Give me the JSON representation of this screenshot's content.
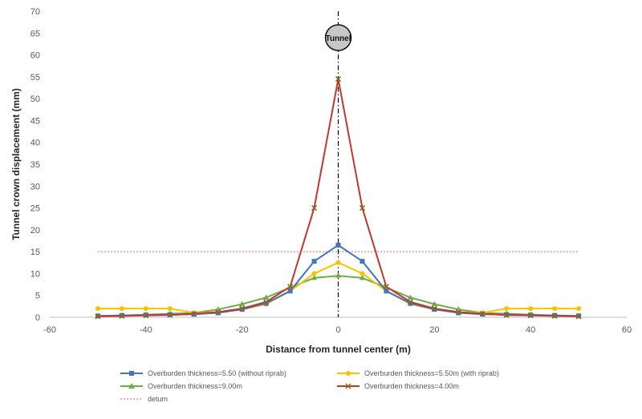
{
  "chart_data": {
    "type": "line",
    "title": "",
    "xlabel": "Distance from tunnel center (m)",
    "ylabel": "Tunnel crown displacement (mm)",
    "xlim": [
      -60,
      60
    ],
    "ylim": [
      0,
      70
    ],
    "xticks": [
      -60,
      -40,
      -20,
      0,
      20,
      40,
      60
    ],
    "yticks": [
      0,
      5,
      10,
      15,
      20,
      25,
      30,
      35,
      40,
      45,
      50,
      55,
      60,
      65,
      70
    ],
    "grid": false,
    "legend_position": "bottom",
    "annotation": "Tunnel",
    "series": [
      {
        "name": "Overburden thickness=5.50 (without riprab)",
        "color": "#4472c4",
        "marker": "square",
        "points": [
          [
            -50,
            0.3
          ],
          [
            -45,
            0.4
          ],
          [
            -40,
            0.5
          ],
          [
            -35,
            0.6
          ],
          [
            -30,
            0.7
          ],
          [
            -25,
            1.0
          ],
          [
            -20,
            1.8
          ],
          [
            -15,
            3.2
          ],
          [
            -10,
            6.0
          ],
          [
            -5,
            12.8
          ],
          [
            0,
            16.5
          ],
          [
            5,
            12.8
          ],
          [
            10,
            6.0
          ],
          [
            15,
            3.2
          ],
          [
            20,
            1.8
          ],
          [
            25,
            1.0
          ],
          [
            30,
            0.7
          ],
          [
            35,
            0.6
          ],
          [
            40,
            0.5
          ],
          [
            45,
            0.4
          ],
          [
            50,
            0.3
          ]
        ]
      },
      {
        "name": "Overburden thickness=5.50m (with riprab)",
        "color": "#ffc000",
        "marker": "circle",
        "points": [
          [
            -50,
            2.0
          ],
          [
            -45,
            2.0
          ],
          [
            -40,
            2.0
          ],
          [
            -35,
            2.0
          ],
          [
            -30,
            1.0
          ],
          [
            -25,
            1.2
          ],
          [
            -20,
            1.8
          ],
          [
            -15,
            3.0
          ],
          [
            -10,
            6.0
          ],
          [
            -5,
            10.0
          ],
          [
            0,
            12.5
          ],
          [
            5,
            10.0
          ],
          [
            10,
            6.0
          ],
          [
            15,
            3.0
          ],
          [
            20,
            1.8
          ],
          [
            25,
            1.2
          ],
          [
            30,
            1.0
          ],
          [
            35,
            2.0
          ],
          [
            40,
            2.0
          ],
          [
            45,
            2.0
          ],
          [
            50,
            2.0
          ]
        ]
      },
      {
        "name": "Overburden thickness=9.00m",
        "color": "#70ad47",
        "marker": "triangle",
        "points": [
          [
            -50,
            0.3
          ],
          [
            -45,
            0.4
          ],
          [
            -40,
            0.6
          ],
          [
            -35,
            0.8
          ],
          [
            -30,
            1.0
          ],
          [
            -25,
            1.8
          ],
          [
            -20,
            3.0
          ],
          [
            -15,
            4.5
          ],
          [
            -10,
            6.8
          ],
          [
            -5,
            9.0
          ],
          [
            0,
            9.5
          ],
          [
            5,
            9.0
          ],
          [
            10,
            6.8
          ],
          [
            15,
            4.5
          ],
          [
            20,
            3.0
          ],
          [
            25,
            1.8
          ],
          [
            30,
            1.0
          ],
          [
            35,
            0.8
          ],
          [
            40,
            0.6
          ],
          [
            45,
            0.4
          ],
          [
            50,
            0.3
          ]
        ]
      },
      {
        "name": "Overburden thickness=4.00m",
        "color": "#c0392b",
        "marker": "cross",
        "points": [
          [
            -50,
            0.2
          ],
          [
            -45,
            0.3
          ],
          [
            -40,
            0.4
          ],
          [
            -35,
            0.5
          ],
          [
            -30,
            0.8
          ],
          [
            -25,
            1.2
          ],
          [
            -20,
            2.0
          ],
          [
            -15,
            3.5
          ],
          [
            -10,
            7.0
          ],
          [
            -5,
            25.0
          ],
          [
            0,
            54.5
          ],
          [
            5,
            25.0
          ],
          [
            10,
            7.0
          ],
          [
            15,
            3.5
          ],
          [
            20,
            2.0
          ],
          [
            25,
            1.2
          ],
          [
            30,
            0.8
          ],
          [
            35,
            0.5
          ],
          [
            40,
            0.4
          ],
          [
            45,
            0.3
          ],
          [
            50,
            0.2
          ]
        ]
      },
      {
        "name": "detum",
        "color": "#e06666",
        "marker": "none",
        "dashed": true,
        "points": [
          [
            -50,
            15
          ],
          [
            50,
            15
          ]
        ]
      }
    ]
  }
}
